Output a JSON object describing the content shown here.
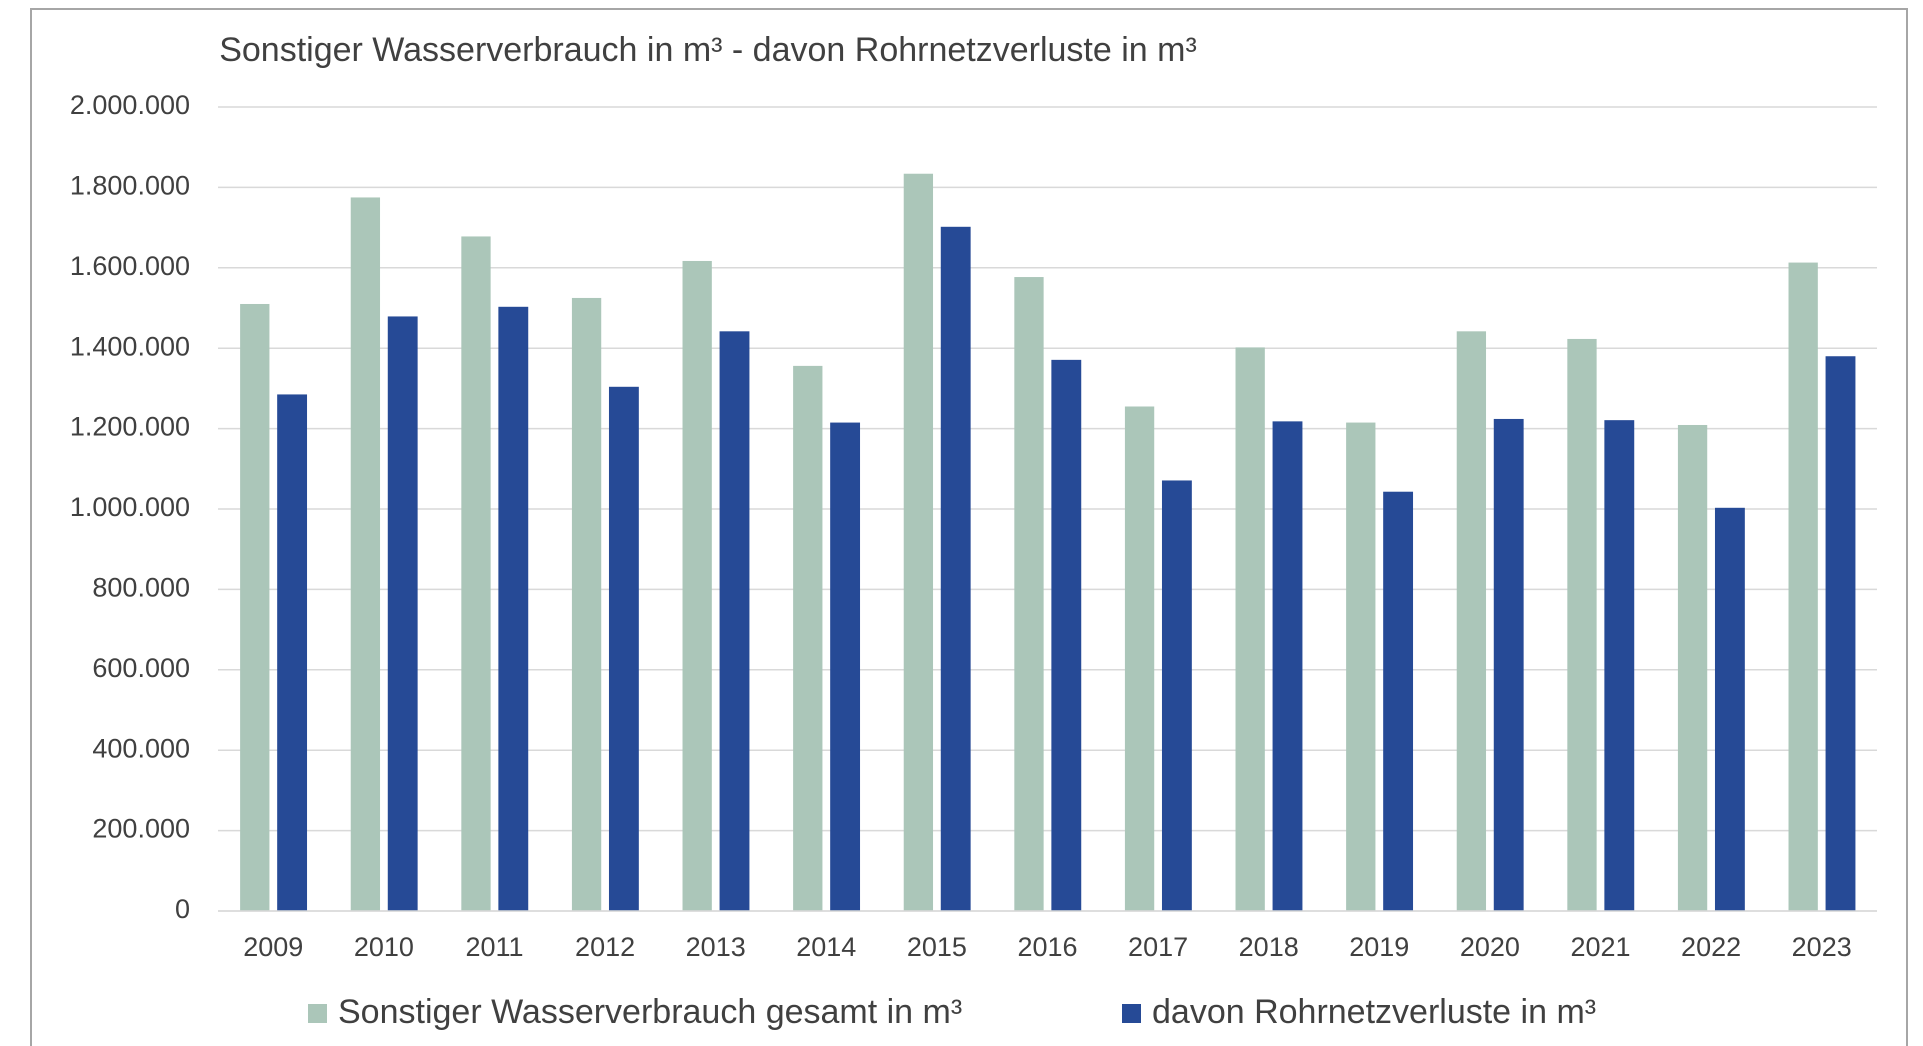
{
  "chart_data": {
    "type": "bar",
    "title": "Sonstiger Wasserverbrauch in m³ - davon Rohrnetzverluste in m³",
    "categories": [
      "2009",
      "2010",
      "2011",
      "2012",
      "2013",
      "2014",
      "2015",
      "2016",
      "2017",
      "2018",
      "2019",
      "2020",
      "2021",
      "2022",
      "2023"
    ],
    "series": [
      {
        "name": "Sonstiger Wasserverbrauch gesamt in m³",
        "color": "#abc6b9",
        "values": [
          1510000,
          1775000,
          1678000,
          1525000,
          1617000,
          1356000,
          1834000,
          1577000,
          1255000,
          1402000,
          1215000,
          1442000,
          1423000,
          1209000,
          1613000
        ]
      },
      {
        "name": "davon Rohrnetzverluste in m³",
        "color": "#264a96",
        "values": [
          1285000,
          1479000,
          1503000,
          1304000,
          1442000,
          1215000,
          1702000,
          1371000,
          1071000,
          1218000,
          1043000,
          1224000,
          1221000,
          1003000,
          1380000
        ]
      }
    ],
    "ylim": [
      0,
      2000000
    ],
    "yticks": [
      0,
      {
        "value": 200000,
        "label": "200.000"
      },
      {
        "value": 400000,
        "label": "400.000"
      },
      {
        "value": 600000,
        "label": "600.000"
      },
      {
        "value": 800000,
        "label": "800.000"
      },
      {
        "value": 1000000,
        "label": "1.000.000"
      },
      {
        "value": 1200000,
        "label": "1.200.000"
      },
      {
        "value": 1400000,
        "label": "1.400.000"
      },
      {
        "value": 1600000,
        "label": "1.600.000"
      },
      {
        "value": 1800000,
        "label": "1.800.000"
      },
      {
        "value": 2000000,
        "label": "2.000.000"
      }
    ],
    "grid": true,
    "legend": "bottom"
  }
}
